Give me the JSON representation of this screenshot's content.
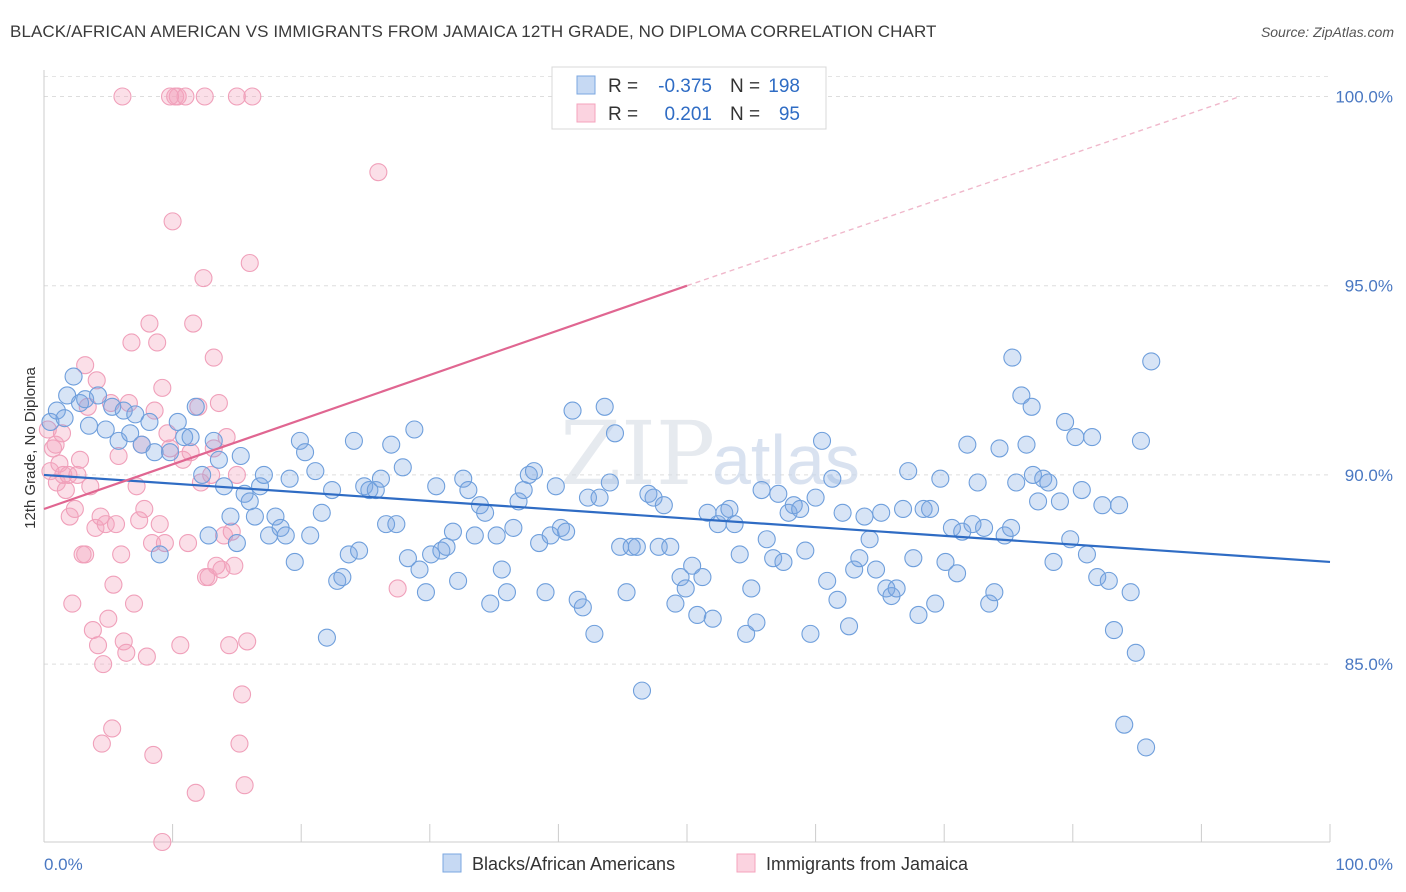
{
  "header": {
    "title": "BLACK/AFRICAN AMERICAN VS IMMIGRANTS FROM JAMAICA 12TH GRADE, NO DIPLOMA CORRELATION CHART",
    "source": "Source: ZipAtlas.com"
  },
  "watermark": {
    "part1": "ZIP",
    "part2": "atlas"
  },
  "chart_data": {
    "type": "scatter",
    "title": "BLACK/AFRICAN AMERICAN VS IMMIGRANTS FROM JAMAICA 12TH GRADE, NO DIPLOMA CORRELATION CHART",
    "xlabel": "",
    "ylabel": "12th Grade, No Diploma",
    "xlim": [
      0,
      100
    ],
    "ylim": [
      80.3,
      100.7
    ],
    "x_tick_labels": [
      "0.0%",
      "100.0%"
    ],
    "y_ticks": [
      85,
      90,
      95,
      100
    ],
    "y_tick_labels": [
      "85.0%",
      "90.0%",
      "95.0%",
      "100.0%"
    ],
    "grid": true,
    "legend": {
      "placement": "top-center",
      "rows": [
        {
          "r_label": "R =",
          "r_value": "-0.375",
          "n_label": "N =",
          "n_value": "198"
        },
        {
          "r_label": "R =",
          "r_value": "0.201",
          "n_label": "N =",
          "n_value": "95"
        }
      ]
    },
    "series": [
      {
        "name": "Blacks/African Americans",
        "color": "#7ba7e0",
        "line_color": "#2f6cc4",
        "trend": {
          "x": [
            0,
            100
          ],
          "y": [
            90.0,
            87.7
          ]
        },
        "points": [
          [
            0.5,
            91.4
          ],
          [
            1,
            91.7
          ],
          [
            1.6,
            91.5
          ],
          [
            1.8,
            92.1
          ],
          [
            2.3,
            92.6
          ],
          [
            2.8,
            91.9
          ],
          [
            3.2,
            92.0
          ],
          [
            3.5,
            91.3
          ],
          [
            4.2,
            92.1
          ],
          [
            4.8,
            91.2
          ],
          [
            5.3,
            91.8
          ],
          [
            5.8,
            90.9
          ],
          [
            6.2,
            91.7
          ],
          [
            6.7,
            91.1
          ],
          [
            7.1,
            91.6
          ],
          [
            7.6,
            90.8
          ],
          [
            8.2,
            91.4
          ],
          [
            8.6,
            90.6
          ],
          [
            9.0,
            87.9
          ],
          [
            9.8,
            90.6
          ],
          [
            10.4,
            91.4
          ],
          [
            10.9,
            91.0
          ],
          [
            11.4,
            91.0
          ],
          [
            11.8,
            91.8
          ],
          [
            12.3,
            90.0
          ],
          [
            12.8,
            88.4
          ],
          [
            13.2,
            90.9
          ],
          [
            13.6,
            90.4
          ],
          [
            14.0,
            89.7
          ],
          [
            14.5,
            88.9
          ],
          [
            15.0,
            88.2
          ],
          [
            15.3,
            90.5
          ],
          [
            15.6,
            89.5
          ],
          [
            16.0,
            89.3
          ],
          [
            16.4,
            88.9
          ],
          [
            16.8,
            89.7
          ],
          [
            17.1,
            90.0
          ],
          [
            17.5,
            88.4
          ],
          [
            18.0,
            88.9
          ],
          [
            18.4,
            88.6
          ],
          [
            18.8,
            88.4
          ],
          [
            19.1,
            89.9
          ],
          [
            19.5,
            87.7
          ],
          [
            19.9,
            90.9
          ],
          [
            20.3,
            90.6
          ],
          [
            20.7,
            88.4
          ],
          [
            21.1,
            90.1
          ],
          [
            21.6,
            89.0
          ],
          [
            22.0,
            85.7
          ],
          [
            22.4,
            89.6
          ],
          [
            22.8,
            87.2
          ],
          [
            23.2,
            87.3
          ],
          [
            23.7,
            87.9
          ],
          [
            24.1,
            90.9
          ],
          [
            24.5,
            88.0
          ],
          [
            24.9,
            89.7
          ],
          [
            25.3,
            89.6
          ],
          [
            25.8,
            89.6
          ],
          [
            26.2,
            89.9
          ],
          [
            26.6,
            88.7
          ],
          [
            27.0,
            90.8
          ],
          [
            27.4,
            88.7
          ],
          [
            27.9,
            90.2
          ],
          [
            28.3,
            87.8
          ],
          [
            28.8,
            91.2
          ],
          [
            29.2,
            87.5
          ],
          [
            29.7,
            86.9
          ],
          [
            30.1,
            87.9
          ],
          [
            30.5,
            89.7
          ],
          [
            30.9,
            88.0
          ],
          [
            31.3,
            88.1
          ],
          [
            31.8,
            88.5
          ],
          [
            32.2,
            87.2
          ],
          [
            32.6,
            89.9
          ],
          [
            33.0,
            89.6
          ],
          [
            33.5,
            88.4
          ],
          [
            33.9,
            89.2
          ],
          [
            34.3,
            89.0
          ],
          [
            34.7,
            86.6
          ],
          [
            35.2,
            88.4
          ],
          [
            35.6,
            87.5
          ],
          [
            36.0,
            86.9
          ],
          [
            36.5,
            88.6
          ],
          [
            36.9,
            89.3
          ],
          [
            37.3,
            89.6
          ],
          [
            37.7,
            90.0
          ],
          [
            38.1,
            90.1
          ],
          [
            38.5,
            88.2
          ],
          [
            39.0,
            86.9
          ],
          [
            39.4,
            88.4
          ],
          [
            39.8,
            89.7
          ],
          [
            40.2,
            88.6
          ],
          [
            40.6,
            88.5
          ],
          [
            41.1,
            91.7
          ],
          [
            41.5,
            86.7
          ],
          [
            41.9,
            86.5
          ],
          [
            42.3,
            89.4
          ],
          [
            42.8,
            85.8
          ],
          [
            43.2,
            89.4
          ],
          [
            43.6,
            91.8
          ],
          [
            44.0,
            89.8
          ],
          [
            44.4,
            91.1
          ],
          [
            44.8,
            88.1
          ],
          [
            45.3,
            86.9
          ],
          [
            45.7,
            88.1
          ],
          [
            46.1,
            88.1
          ],
          [
            46.5,
            84.3
          ],
          [
            47.0,
            89.5
          ],
          [
            47.4,
            89.4
          ],
          [
            47.8,
            88.1
          ],
          [
            48.2,
            89.2
          ],
          [
            48.7,
            88.1
          ],
          [
            49.1,
            86.6
          ],
          [
            49.5,
            87.3
          ],
          [
            49.9,
            87.0
          ],
          [
            50.4,
            87.6
          ],
          [
            50.8,
            86.3
          ],
          [
            51.2,
            87.3
          ],
          [
            51.6,
            89.0
          ],
          [
            52.0,
            86.2
          ],
          [
            52.4,
            88.7
          ],
          [
            52.9,
            89.0
          ],
          [
            53.3,
            89.1
          ],
          [
            53.7,
            88.7
          ],
          [
            54.1,
            87.9
          ],
          [
            54.6,
            85.8
          ],
          [
            55.0,
            87.0
          ],
          [
            55.4,
            86.1
          ],
          [
            55.8,
            89.6
          ],
          [
            56.2,
            88.3
          ],
          [
            56.7,
            87.8
          ],
          [
            57.1,
            89.5
          ],
          [
            57.5,
            87.7
          ],
          [
            57.9,
            89.0
          ],
          [
            58.3,
            89.2
          ],
          [
            58.8,
            89.1
          ],
          [
            59.2,
            88.0
          ],
          [
            59.6,
            85.8
          ],
          [
            60.0,
            89.4
          ],
          [
            60.5,
            90.9
          ],
          [
            60.9,
            87.2
          ],
          [
            61.3,
            89.9
          ],
          [
            61.7,
            86.7
          ],
          [
            62.1,
            89.0
          ],
          [
            62.6,
            86.0
          ],
          [
            63.0,
            87.5
          ],
          [
            63.4,
            87.8
          ],
          [
            63.8,
            88.9
          ],
          [
            64.2,
            88.3
          ],
          [
            64.7,
            87.5
          ],
          [
            65.1,
            89.0
          ],
          [
            65.5,
            87.0
          ],
          [
            65.9,
            86.8
          ],
          [
            66.3,
            87.0
          ],
          [
            66.8,
            89.1
          ],
          [
            67.2,
            90.1
          ],
          [
            67.6,
            87.8
          ],
          [
            68.0,
            86.3
          ],
          [
            68.4,
            89.1
          ],
          [
            68.9,
            89.1
          ],
          [
            69.3,
            86.6
          ],
          [
            69.7,
            89.9
          ],
          [
            70.1,
            87.7
          ],
          [
            70.6,
            88.6
          ],
          [
            71.0,
            87.4
          ],
          [
            71.4,
            88.5
          ],
          [
            71.8,
            90.8
          ],
          [
            72.2,
            88.7
          ],
          [
            72.6,
            89.8
          ],
          [
            73.1,
            88.6
          ],
          [
            73.5,
            86.6
          ],
          [
            73.9,
            86.9
          ],
          [
            74.3,
            90.7
          ],
          [
            74.7,
            88.4
          ],
          [
            75.2,
            88.6
          ],
          [
            75.6,
            89.8
          ],
          [
            76.0,
            92.1
          ],
          [
            76.4,
            90.8
          ],
          [
            76.8,
            91.8
          ],
          [
            77.3,
            89.3
          ],
          [
            77.7,
            89.9
          ],
          [
            78.1,
            89.8
          ],
          [
            78.5,
            87.7
          ],
          [
            79.0,
            89.3
          ],
          [
            79.4,
            91.4
          ],
          [
            79.8,
            88.3
          ],
          [
            80.2,
            91.0
          ],
          [
            80.7,
            89.6
          ],
          [
            81.1,
            87.9
          ],
          [
            81.5,
            91.0
          ],
          [
            81.9,
            87.3
          ],
          [
            82.3,
            89.2
          ],
          [
            82.8,
            87.2
          ],
          [
            83.2,
            85.9
          ],
          [
            83.6,
            89.2
          ],
          [
            84.0,
            83.4
          ],
          [
            84.5,
            86.9
          ],
          [
            84.9,
            85.3
          ],
          [
            85.3,
            90.9
          ],
          [
            85.7,
            82.8
          ],
          [
            86.1,
            93.0
          ],
          [
            75.3,
            93.1
          ],
          [
            76.9,
            90.0
          ]
        ]
      },
      {
        "name": "Immigrants from Jamaica",
        "color": "#f4a3bd",
        "line_color": "#e06691",
        "trend": {
          "x": [
            0,
            50
          ],
          "y": [
            89.1,
            95.0
          ]
        },
        "trend_dashed": {
          "x": [
            50,
            93
          ],
          "y": [
            95.0,
            100.0
          ]
        },
        "points": [
          [
            0.3,
            91.2
          ],
          [
            0.5,
            90.1
          ],
          [
            0.7,
            90.7
          ],
          [
            0.9,
            90.8
          ],
          [
            1.0,
            89.8
          ],
          [
            1.2,
            90.3
          ],
          [
            1.4,
            91.1
          ],
          [
            1.5,
            90.0
          ],
          [
            1.7,
            89.6
          ],
          [
            1.9,
            90.0
          ],
          [
            2.0,
            88.9
          ],
          [
            2.2,
            86.6
          ],
          [
            2.4,
            89.1
          ],
          [
            2.6,
            90.0
          ],
          [
            2.8,
            90.4
          ],
          [
            3.0,
            87.9
          ],
          [
            3.2,
            87.9
          ],
          [
            3.4,
            91.8
          ],
          [
            3.6,
            89.7
          ],
          [
            3.8,
            85.9
          ],
          [
            4.0,
            88.6
          ],
          [
            4.2,
            85.5
          ],
          [
            4.4,
            88.9
          ],
          [
            4.6,
            85.0
          ],
          [
            4.8,
            88.7
          ],
          [
            5.0,
            86.2
          ],
          [
            5.2,
            91.9
          ],
          [
            5.4,
            87.1
          ],
          [
            5.6,
            88.7
          ],
          [
            5.8,
            90.5
          ],
          [
            6.0,
            87.9
          ],
          [
            6.2,
            85.6
          ],
          [
            6.4,
            85.3
          ],
          [
            6.6,
            91.9
          ],
          [
            6.8,
            93.5
          ],
          [
            7.0,
            86.6
          ],
          [
            7.2,
            89.7
          ],
          [
            7.4,
            88.8
          ],
          [
            7.6,
            90.8
          ],
          [
            7.8,
            89.1
          ],
          [
            8.0,
            85.2
          ],
          [
            8.2,
            94.0
          ],
          [
            8.4,
            88.2
          ],
          [
            8.6,
            91.7
          ],
          [
            8.8,
            93.5
          ],
          [
            9.0,
            88.7
          ],
          [
            9.2,
            92.3
          ],
          [
            9.4,
            88.2
          ],
          [
            9.6,
            91.1
          ],
          [
            9.8,
            90.7
          ],
          [
            10.0,
            96.7
          ],
          [
            10.2,
            100.0
          ],
          [
            10.4,
            100.0
          ],
          [
            10.6,
            85.5
          ],
          [
            10.8,
            90.4
          ],
          [
            11.0,
            100.0
          ],
          [
            11.2,
            88.2
          ],
          [
            11.4,
            90.6
          ],
          [
            11.6,
            94.0
          ],
          [
            11.8,
            81.6
          ],
          [
            12.0,
            91.8
          ],
          [
            12.2,
            89.8
          ],
          [
            12.4,
            95.2
          ],
          [
            12.6,
            87.3
          ],
          [
            12.8,
            87.3
          ],
          [
            13.0,
            90.0
          ],
          [
            13.2,
            93.1
          ],
          [
            13.4,
            87.6
          ],
          [
            13.6,
            91.9
          ],
          [
            13.8,
            87.5
          ],
          [
            14.0,
            88.4
          ],
          [
            14.2,
            91.0
          ],
          [
            14.4,
            85.5
          ],
          [
            14.6,
            88.5
          ],
          [
            14.8,
            87.6
          ],
          [
            15.0,
            90.0
          ],
          [
            15.2,
            82.9
          ],
          [
            15.4,
            84.2
          ],
          [
            15.6,
            81.8
          ],
          [
            15.8,
            85.6
          ],
          [
            16.0,
            95.6
          ],
          [
            16.2,
            100.0
          ],
          [
            6.1,
            100.0
          ],
          [
            5.3,
            83.3
          ],
          [
            4.5,
            82.9
          ],
          [
            8.5,
            82.6
          ],
          [
            9.2,
            80.3
          ],
          [
            4.1,
            92.5
          ],
          [
            3.2,
            92.9
          ],
          [
            26.0,
            98.0
          ],
          [
            27.5,
            87.0
          ],
          [
            13.2,
            90.7
          ],
          [
            15.0,
            100.0
          ],
          [
            9.8,
            100.0
          ],
          [
            12.5,
            100.0
          ]
        ]
      }
    ]
  },
  "bottom_legend": {
    "items": [
      {
        "label": "Blacks/African Americans"
      },
      {
        "label": "Immigrants from Jamaica"
      }
    ]
  }
}
